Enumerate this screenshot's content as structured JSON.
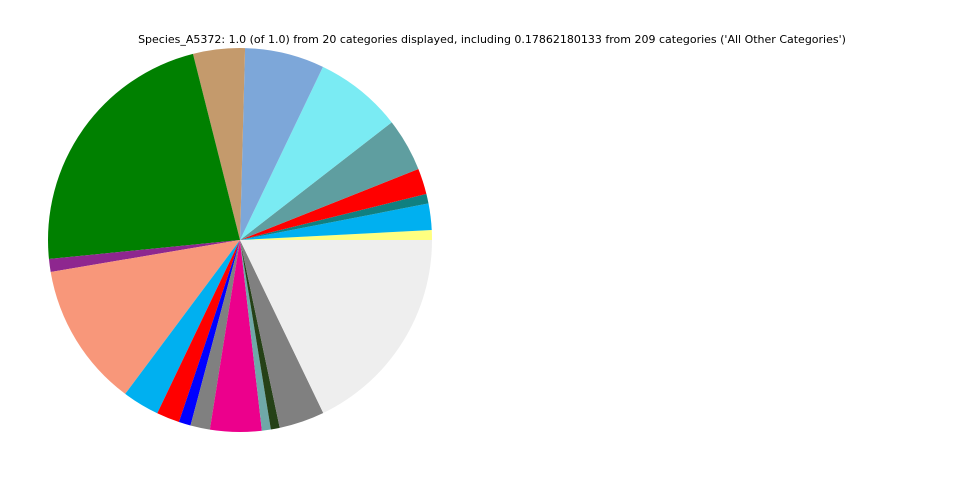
{
  "chart_data": {
    "type": "pie",
    "title": "Species_A5372: 1.0 (of 1.0) from 20 categories displayed, including 0.17862180133 from 209 categories ('All Other Categories')",
    "categories": [
      null,
      null,
      null,
      null,
      null,
      null,
      null,
      null,
      null,
      null,
      null,
      null,
      null,
      null,
      null,
      null,
      null,
      null,
      null,
      null
    ],
    "values": [
      0.0083,
      0.0222,
      0.0081,
      0.0217,
      0.0447,
      0.0739,
      0.0669,
      0.0436,
      0.2264,
      0.0108,
      0.1214,
      0.0311,
      0.0194,
      0.01,
      0.0164,
      0.0433,
      0.0075,
      0.0075,
      0.0382,
      0.1786
    ],
    "colors": [
      "#ffff80",
      "#00b0f0",
      "#108080",
      "#ff0000",
      "#5f9ea0",
      "#7aebf3",
      "#7da7d9",
      "#c49a6c",
      "#008000",
      "#8e278f",
      "#f8977a",
      "#00b0f0",
      "#ff0000",
      "#0000ff",
      "#808080",
      "#ec008c",
      "#6fa8a8",
      "#254117",
      "#808080",
      "#eeeeee"
    ]
  }
}
